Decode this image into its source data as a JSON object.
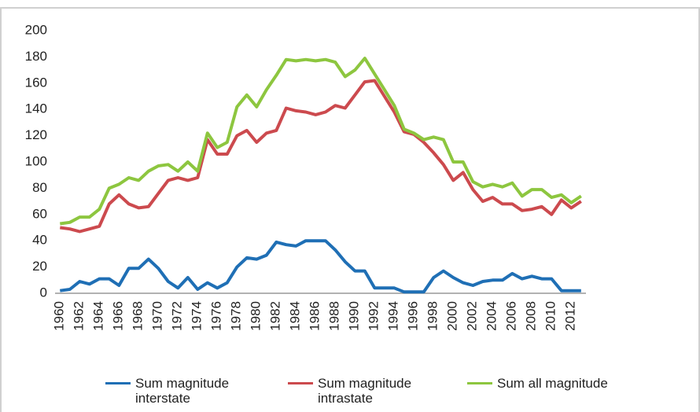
{
  "chart_data": {
    "type": "line",
    "categories": [
      "1960",
      null,
      "1962",
      null,
      "1964",
      null,
      "1966",
      null,
      "1968",
      null,
      "1970",
      null,
      "1972",
      null,
      "1974",
      null,
      "1976",
      null,
      "1978",
      null,
      "1980",
      null,
      "1982",
      null,
      "1984",
      null,
      "1986",
      null,
      "1988",
      null,
      "1990",
      null,
      "1992",
      null,
      "1994",
      null,
      "1996",
      null,
      "1998",
      null,
      "2000",
      null,
      "2002",
      null,
      "2004",
      null,
      "2006",
      null,
      "2008",
      null,
      "2010",
      null,
      "2012",
      null
    ],
    "series": [
      {
        "name": "Sum magnitude interstate",
        "color": "#1f6fb5",
        "values": [
          2,
          3,
          9,
          7,
          11,
          11,
          6,
          19,
          19,
          26,
          19,
          9,
          4,
          12,
          3,
          8,
          4,
          8,
          20,
          27,
          26,
          29,
          39,
          37,
          36,
          40,
          40,
          40,
          33,
          24,
          17,
          17,
          4,
          4,
          4,
          1,
          1,
          1,
          12,
          17,
          12,
          8,
          6,
          9,
          10,
          10,
          15,
          11,
          13,
          11,
          11,
          2,
          2,
          2
        ]
      },
      {
        "name": "Sum magnitude intrastate",
        "color": "#cc4a4e",
        "values": [
          50,
          49,
          47,
          49,
          51,
          68,
          75,
          68,
          65,
          66,
          76,
          86,
          88,
          86,
          88,
          117,
          106,
          106,
          120,
          124,
          115,
          122,
          124,
          141,
          139,
          138,
          136,
          138,
          143,
          141,
          151,
          161,
          162,
          150,
          138,
          123,
          121,
          115,
          107,
          98,
          86,
          92,
          79,
          70,
          73,
          68,
          68,
          63,
          64,
          66,
          60,
          71,
          65,
          70
        ]
      },
      {
        "name": "Sum all magnitude",
        "color": "#8dc63f",
        "values": [
          53,
          54,
          58,
          58,
          64,
          80,
          83,
          88,
          86,
          93,
          97,
          98,
          93,
          100,
          93,
          122,
          111,
          115,
          142,
          151,
          142,
          155,
          166,
          178,
          177,
          178,
          177,
          178,
          176,
          165,
          170,
          179,
          167,
          155,
          143,
          125,
          122,
          117,
          119,
          117,
          100,
          100,
          85,
          81,
          83,
          81,
          84,
          74,
          79,
          79,
          73,
          75,
          69,
          74
        ]
      }
    ],
    "ylim": [
      0,
      200
    ],
    "yticks": [
      0,
      20,
      40,
      60,
      80,
      100,
      120,
      140,
      160,
      180,
      200
    ],
    "grid": false,
    "legend": "bottom"
  }
}
